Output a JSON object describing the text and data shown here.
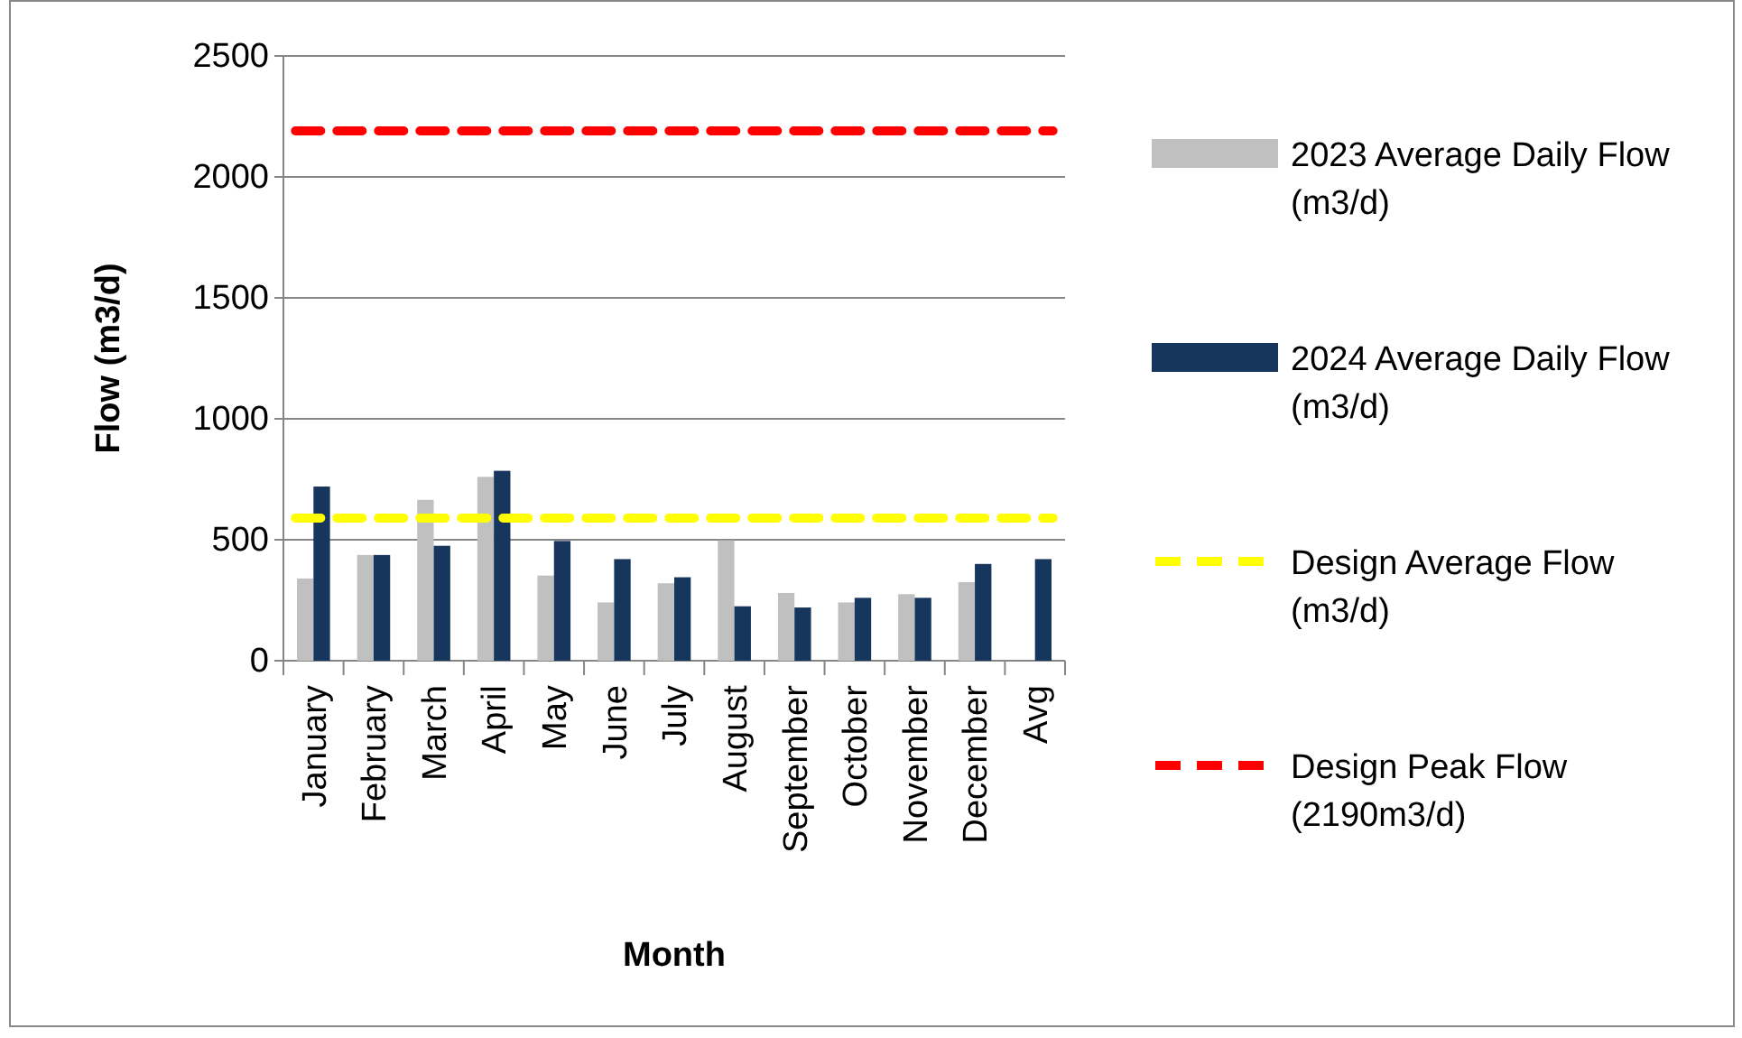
{
  "chart_data": {
    "type": "bar",
    "xlabel": "Month",
    "ylabel": "Flow (m3/d)",
    "categories": [
      "January",
      "February",
      "March",
      "April",
      "May",
      "June",
      "July",
      "August",
      "September",
      "October",
      "November",
      "December",
      "Avg"
    ],
    "series": [
      {
        "name": "2023 Average Daily Flow (m3/d)",
        "color": "#c0c0c0",
        "values": [
          340,
          437,
          665,
          760,
          352,
          241,
          320,
          498,
          280,
          241,
          275,
          325,
          null
        ]
      },
      {
        "name": "2024 Average Daily Flow (m3/d)",
        "color": "#17365d",
        "values": [
          720,
          437,
          475,
          785,
          495,
          420,
          345,
          225,
          220,
          260,
          260,
          400,
          420
        ]
      }
    ],
    "ref_lines": [
      {
        "axis": "y",
        "value": 590,
        "label": "Design Average Flow (m3/d)",
        "color": "#ffff00",
        "line_style": "dashed"
      },
      {
        "axis": "y",
        "value": 2190,
        "label": "Design Peak Flow (2190m3/d)",
        "color": "#ff0000",
        "line_style": "dashed"
      }
    ],
    "ylim": [
      0,
      2500
    ],
    "yticks": [
      0,
      500,
      1000,
      1500,
      2000,
      2500
    ],
    "grid": "y",
    "legend": "right"
  }
}
